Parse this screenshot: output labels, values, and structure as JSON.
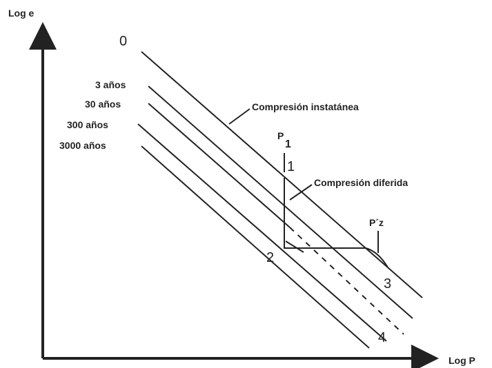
{
  "axes": {
    "y_label": "Log e",
    "x_label": "Log P"
  },
  "lines": [
    {
      "label": "0"
    },
    {
      "label": "3 años"
    },
    {
      "label": "30 años"
    },
    {
      "label": "300 años"
    },
    {
      "label": "3000 años"
    }
  ],
  "annotations": {
    "instant": "Compresión instatánea",
    "deferred": "Compresión diferida"
  },
  "points": {
    "p1": "P",
    "p1_sub": "1",
    "one": "1",
    "two": "2",
    "three": "3",
    "four": "4",
    "p2": "P´z"
  }
}
